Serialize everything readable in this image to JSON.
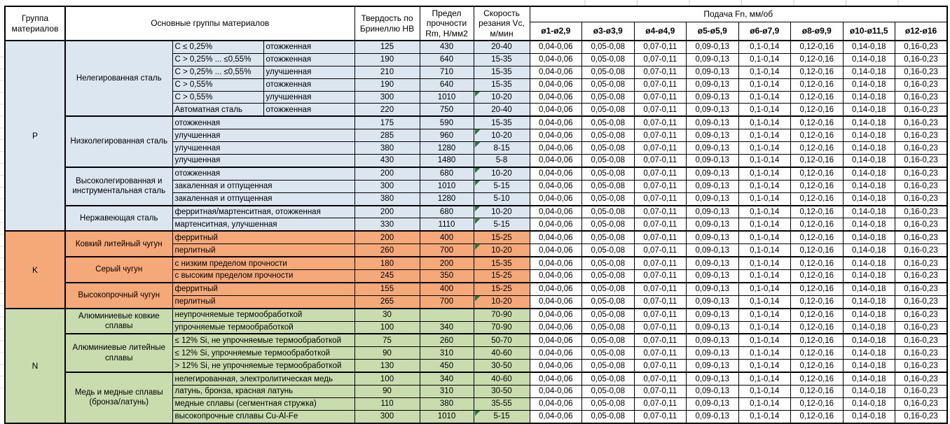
{
  "header": {
    "group": "Группа материалов",
    "main_groups": "Основные группы материалов",
    "hardness": "Твердость по Бринеллю HB",
    "strength": "Предел прочности Rm, Н/мм2",
    "speed": "Скорость резания Vc, м/мин",
    "feed_title": "Подача Fn, мм/об",
    "feed_cols": [
      "ø1-ø2,9",
      "ø3-ø3,9",
      "ø4-ø4,9",
      "ø5-ø5,9",
      "ø6-ø7,9",
      "ø8-ø9,9",
      "ø10-ø11,5",
      "ø12-ø16"
    ]
  },
  "colors": {
    "group_p_fill": "#DCE6F1",
    "group_k_fill": "#F6A978",
    "group_n_fill": "#C9DCAE",
    "comment_marker": "#217A36",
    "grid_border": "#000000"
  },
  "table": {
    "feed_values": [
      "0,04-0,06",
      "0,05-0,08",
      "0,07-0,11",
      "0,09-0,13",
      "0,1-0,14",
      "0,12-0,16",
      "0,14-0,18",
      "0,16-0,23"
    ],
    "rows": [
      {
        "group": {
          "label": "P",
          "span": 15,
          "color": "p"
        },
        "main": {
          "label": "Нелегированная сталь",
          "span": 6
        },
        "split": true,
        "c1": "C ≤ 0,25%",
        "c2": "отожженная",
        "hb": "125",
        "rm": "430",
        "vc": "20-40"
      },
      {
        "split": true,
        "c1": "C > 0,25% ... ≤0,55%",
        "c2": "отожженная",
        "hb": "190",
        "rm": "640",
        "vc": "15-35"
      },
      {
        "split": true,
        "c1": "C > 0,25% ... ≤0,55%",
        "c2": "улучшенная",
        "hb": "210",
        "rm": "710",
        "vc": "15-35"
      },
      {
        "split": true,
        "c1": "C > 0,55%",
        "c2": "отожженная",
        "hb": "190",
        "rm": "640",
        "vc": "15-35"
      },
      {
        "split": true,
        "c1": "C > 0,55%",
        "c2": "улучшенная",
        "hb": "300",
        "rm": "1010",
        "vc": "10-20",
        "marker": true
      },
      {
        "split": true,
        "c1": "Автоматная сталь",
        "c2": "отожженная",
        "hb": "220",
        "rm": "750",
        "vc": "20-40"
      },
      {
        "main": {
          "label": "Низколегированная сталь",
          "span": 4
        },
        "thick": true,
        "desc": "отожженная",
        "hb": "175",
        "rm": "590",
        "vc": "15-35"
      },
      {
        "desc": "улучшенная",
        "hb": "285",
        "rm": "960",
        "vc": "10-20",
        "marker": true
      },
      {
        "desc": "улучшенная",
        "hb": "380",
        "rm": "1280",
        "vc": "8-15",
        "marker": true
      },
      {
        "desc": "улучшенная",
        "hb": "430",
        "rm": "1480",
        "vc": "5-8"
      },
      {
        "main": {
          "label": "Высоколегированная и инструментальная сталь",
          "span": 3
        },
        "thick": true,
        "desc": "отожженная",
        "hb": "200",
        "rm": "680",
        "vc": "10-20",
        "marker": true
      },
      {
        "desc": "закаленная и отпущенная",
        "hb": "300",
        "rm": "1010",
        "vc": "5-15",
        "marker": true
      },
      {
        "desc": "закаленная и отпущенная",
        "hb": "380",
        "rm": "1280",
        "vc": "5-10"
      },
      {
        "main": {
          "label": "Нержавеющая сталь",
          "span": 2
        },
        "thick": true,
        "desc": "ферритная/мартенситная, отожженная",
        "hb": "200",
        "rm": "680",
        "vc": "10-20",
        "marker": true
      },
      {
        "desc": "мартенситная, улучшенная",
        "hb": "330",
        "rm": "1110",
        "vc": "5-15",
        "marker": true
      },
      {
        "group": {
          "label": "K",
          "span": 6,
          "color": "k"
        },
        "main": {
          "label": "Ковкий литейный чугун",
          "span": 2
        },
        "thick": true,
        "desc": "ферритный",
        "hb": "200",
        "rm": "400",
        "vc": "15-25"
      },
      {
        "desc": "перлитный",
        "hb": "260",
        "rm": "700",
        "vc": "10-20",
        "marker": true
      },
      {
        "main": {
          "label": "Серый чугун",
          "span": 2
        },
        "thick": true,
        "desc": "с низким пределом прочности",
        "hb": "180",
        "rm": "200",
        "vc": "15-35"
      },
      {
        "desc": "с высоким пределом прочности",
        "hb": "245",
        "rm": "350",
        "vc": "15-25"
      },
      {
        "main": {
          "label": "Высокопрочный чугун",
          "span": 2
        },
        "thick": true,
        "desc": "ферритный",
        "hb": "155",
        "rm": "400",
        "vc": "15-25"
      },
      {
        "desc": "перлитный",
        "hb": "265",
        "rm": "700",
        "vc": "10-20",
        "marker": true
      },
      {
        "group": {
          "label": "N",
          "span": 9,
          "color": "n"
        },
        "main": {
          "label": "Алюминиевые ковкие сплавы",
          "span": 2
        },
        "thick": true,
        "desc": "неупрочняемые термообработкой",
        "hb": "30",
        "rm": "",
        "vc": "70-90"
      },
      {
        "desc": "упрочняемые термообработкой",
        "hb": "100",
        "rm": "340",
        "vc": "70-90"
      },
      {
        "main": {
          "label": "Алюминиевые литейные сплавы",
          "span": 3
        },
        "thick": true,
        "desc": "≤ 12% Si, не упрочняемые термообработкой",
        "hb": "75",
        "rm": "260",
        "vc": "50-70"
      },
      {
        "desc": "≤ 12% Si, упрочняемые термообработкой",
        "hb": "90",
        "rm": "310",
        "vc": "40-60"
      },
      {
        "desc": "> 12% Si, не упрочняемые термообработкой",
        "hb": "130",
        "rm": "450",
        "vc": "30-50"
      },
      {
        "main": {
          "label": "Медь и медные сплавы (бронза/латунь)",
          "span": 4
        },
        "thick": true,
        "desc": "нелегированная, электролитическая медь",
        "hb": "100",
        "rm": "340",
        "vc": "40-60"
      },
      {
        "desc": "латунь, бронза, красная латунь",
        "hb": "90",
        "rm": "310",
        "vc": "30-50"
      },
      {
        "desc": "медные сплавы (сегментная стружка)",
        "hb": "110",
        "rm": "380",
        "vc": "35-55"
      },
      {
        "desc": "высокопрочные сплавы Cu-Al-Fe",
        "hb": "300",
        "rm": "1010",
        "vc": "5-15",
        "marker": true
      }
    ]
  }
}
